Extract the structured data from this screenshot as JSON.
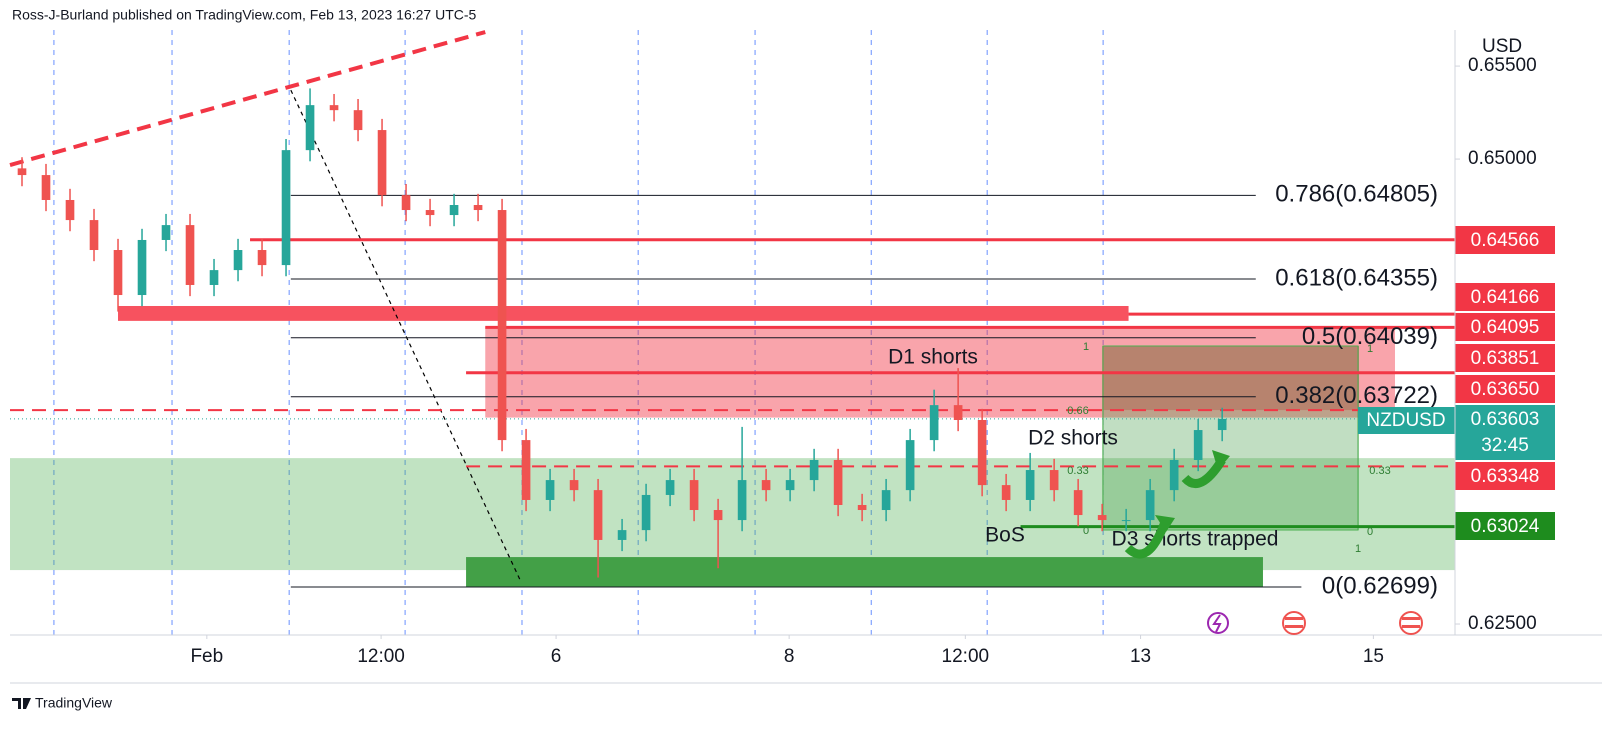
{
  "chart_data": {
    "type": "candlestick",
    "header": "Ross-J-Burland published on TradingView.com, Feb 13, 2023 16:27 UTC-5",
    "currency": "USD",
    "brand": "TradingView",
    "up_color": "#26a69a",
    "down_color": "#ef5350",
    "open": [
      0.6495,
      0.64914,
      0.6478,
      0.64672,
      0.64511,
      0.64269,
      0.64565,
      0.64645,
      0.64323,
      0.64403,
      0.64511,
      0.6443,
      0.65048,
      0.6529,
      0.65263,
      0.65156,
      0.64806,
      0.64726,
      0.64699,
      0.64753,
      0.64726,
      0.63489,
      0.63167,
      0.63274,
      0.6322,
      0.62952,
      0.63005,
      0.63194,
      0.63274,
      0.63113,
      0.63059,
      0.63274,
      0.6322,
      0.63274,
      0.63382,
      0.6314,
      0.63113,
      0.6322,
      0.63489,
      0.63677,
      0.63597,
      0.63247,
      0.63167,
      0.63328,
      0.6322,
      0.63086,
      0.63059,
      0.63059,
      0.6322,
      0.63382,
      0.63543
    ],
    "high": [
      0.6501,
      0.64974,
      0.6484,
      0.64732,
      0.64571,
      0.64625,
      0.64705,
      0.64705,
      0.64463,
      0.64571,
      0.64571,
      0.65108,
      0.6538,
      0.6535,
      0.65323,
      0.65216,
      0.64866,
      0.64786,
      0.64813,
      0.64813,
      0.64786,
      0.63549,
      0.63334,
      0.63334,
      0.6328,
      0.63065,
      0.63254,
      0.63334,
      0.63334,
      0.63173,
      0.6356,
      0.63334,
      0.63334,
      0.63442,
      0.63442,
      0.632,
      0.6328,
      0.63549,
      0.6376,
      0.63876,
      0.63657,
      0.63307,
      0.6342,
      0.63388,
      0.6328,
      0.63146,
      0.63119,
      0.6328,
      0.63442,
      0.63603,
      0.63663
    ],
    "low": [
      0.64854,
      0.6472,
      0.64612,
      0.64451,
      0.6418,
      0.64209,
      0.64505,
      0.64263,
      0.64263,
      0.64343,
      0.6437,
      0.6437,
      0.64988,
      0.65203,
      0.65096,
      0.64746,
      0.64666,
      0.64639,
      0.64639,
      0.64666,
      0.63429,
      0.63107,
      0.63107,
      0.6316,
      0.6275,
      0.62892,
      0.62945,
      0.63134,
      0.63053,
      0.628,
      0.62999,
      0.6316,
      0.6316,
      0.63214,
      0.6308,
      0.63053,
      0.63053,
      0.6316,
      0.63429,
      0.63537,
      0.63187,
      0.63107,
      0.63107,
      0.6316,
      0.63026,
      0.62999,
      0.62999,
      0.62999,
      0.6316,
      0.63322,
      0.63483
    ],
    "close": [
      0.64914,
      0.6478,
      0.64672,
      0.64511,
      0.64269,
      0.64565,
      0.64645,
      0.64323,
      0.64403,
      0.64511,
      0.6443,
      0.65048,
      0.6529,
      0.65263,
      0.65156,
      0.64806,
      0.64726,
      0.64699,
      0.64753,
      0.64726,
      0.63489,
      0.63167,
      0.63274,
      0.6322,
      0.62952,
      0.63005,
      0.63194,
      0.63274,
      0.63113,
      0.63059,
      0.63274,
      0.6322,
      0.63274,
      0.63382,
      0.6314,
      0.63113,
      0.6322,
      0.63489,
      0.63677,
      0.63597,
      0.63247,
      0.63167,
      0.63328,
      0.6322,
      0.63086,
      0.63059,
      0.63059,
      0.6322,
      0.63382,
      0.63543,
      0.63603
    ],
    "xlim": [
      0,
      60.2
    ],
    "xticks": [
      {
        "value": 8.2,
        "label": "Feb"
      },
      {
        "value": 15.46,
        "label": "12:00"
      },
      {
        "value": 22.75,
        "label": "6"
      },
      {
        "value": 32.46,
        "label": "8"
      },
      {
        "value": 39.8,
        "label": "12:00"
      },
      {
        "value": 47.1,
        "label": "13"
      },
      {
        "value": 56.8,
        "label": "15"
      }
    ],
    "xgrid": [
      1.83,
      6.75,
      11.63,
      16.46,
      21.33,
      26.17,
      31.04,
      35.88,
      40.71,
      45.54
    ],
    "ylim": [
      0.62441,
      0.65694
    ],
    "yticks": [
      {
        "value": 0.655,
        "label": "0.65500"
      },
      {
        "value": 0.65,
        "label": "0.65000"
      },
      {
        "value": 0.625,
        "label": "0.62500"
      }
    ],
    "fib": [
      {
        "label": "0.786(0.64805)",
        "value": 0.64805,
        "start": 11.7,
        "end": 51.9
      },
      {
        "label": "0.618(0.64355)",
        "value": 0.64355,
        "start": 11.7,
        "end": 51.9
      },
      {
        "label": "0.5(0.64039)",
        "value": 0.64039,
        "start": 11.7,
        "end": 51.9
      },
      {
        "label": "0.382(0.63722)",
        "value": 0.63722,
        "start": 11.7,
        "end": 51.9
      },
      {
        "label": "0(0.62699)",
        "value": 0.62699,
        "start": 11.7,
        "end": 53.8
      }
    ],
    "levels": [
      {
        "value": 0.64566,
        "label": "0.64566",
        "color": "#f23645",
        "style": "solid",
        "start": 10.0
      },
      {
        "value": 0.64166,
        "label": "0.64166",
        "color": "#f23645",
        "style": "solid",
        "start": 46.6
      },
      {
        "value": 0.64095,
        "label": "0.64095",
        "color": "#f23645",
        "style": "solid",
        "start": 19.8
      },
      {
        "value": 0.63851,
        "label": "0.63851",
        "color": "#f23645",
        "style": "solid",
        "start": 19.0
      },
      {
        "value": 0.6365,
        "label": "0.63650",
        "color": "#f23645",
        "style": "dashed",
        "start": 0
      },
      {
        "value": 0.63348,
        "label": "0.63348",
        "color": "#f23645",
        "style": "dashed",
        "start": 19.0
      },
      {
        "value": 0.63024,
        "label": "0.63024",
        "color": "#1e8c1e",
        "style": "solid",
        "start": 42.1
      }
    ],
    "current": {
      "name": "NZDUSD",
      "value": 0.63603,
      "label": "0.63603",
      "countdown": "32:45",
      "color": "#26a69a"
    },
    "zones": [
      {
        "x": [
          0,
          60.2
        ],
        "y": [
          0.6279,
          0.63392
        ],
        "color": "rgba(76,175,80,0.35)"
      },
      {
        "x": [
          19.8,
          57.7
        ],
        "y": [
          0.6361,
          0.64095
        ],
        "color": "rgba(242,54,69,0.45)"
      },
      {
        "x": [
          4.5,
          46.6
        ],
        "y": [
          0.6413,
          0.6421
        ],
        "color": "#f7525f"
      },
      {
        "x": [
          19.0,
          52.2
        ],
        "y": [
          0.62699,
          0.6286
        ],
        "color": "#43a047"
      },
      {
        "x": [
          45.5,
          56.2
        ],
        "y": [
          0.6365,
          0.63995
        ],
        "color": "rgba(160,120,90,0.75)"
      },
      {
        "x": [
          45.5,
          56.2
        ],
        "y": [
          0.63005,
          0.6365
        ],
        "color": "rgba(76,160,80,0.35)"
      }
    ],
    "trendlines": [
      {
        "x": [
          0,
          19.8
        ],
        "y": [
          0.64968,
          0.65683
        ],
        "color": "#f23645",
        "style": "dashed"
      },
      {
        "x": [
          11.7,
          21.25
        ],
        "y": [
          0.65371,
          0.62737
        ],
        "color": "#000000",
        "style": "dotted"
      }
    ],
    "annotations": [
      "D1 shorts",
      "D2 shorts",
      "BoS",
      "D3 shorts trapped"
    ],
    "position_labels": [
      "1",
      "0.66",
      "0.33",
      "0",
      "1",
      "0.33",
      "0",
      "1"
    ]
  }
}
